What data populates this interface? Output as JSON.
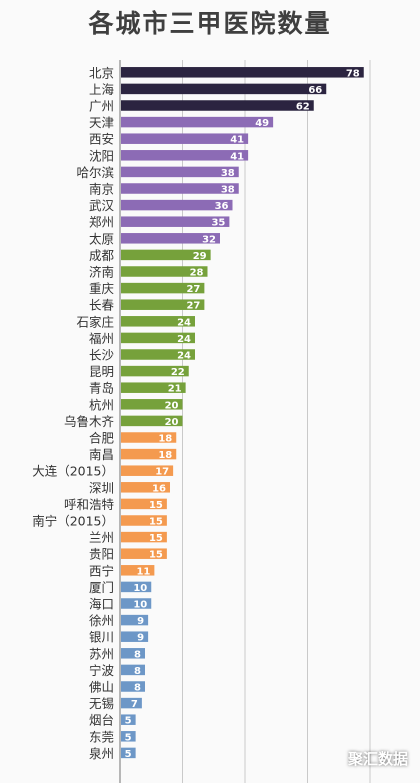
{
  "chart_data": {
    "type": "bar",
    "orientation": "horizontal",
    "title": "各城市三甲医院数量",
    "categories": [
      "北京",
      "上海",
      "广州",
      "天津",
      "西安",
      "沈阳",
      "哈尔滨",
      "南京",
      "武汉",
      "郑州",
      "太原",
      "成都",
      "济南",
      "重庆",
      "长春",
      "石家庄",
      "福州",
      "长沙",
      "昆明",
      "青岛",
      "杭州",
      "乌鲁木齐",
      "合肥",
      "南昌",
      "大连（2015）",
      "深圳",
      "呼和浩特",
      "南宁（2015）",
      "兰州",
      "贵阳",
      "西宁",
      "厦门",
      "海口",
      "徐州",
      "银川",
      "苏州",
      "宁波",
      "佛山",
      "无锡",
      "烟台",
      "东莞",
      "泉州"
    ],
    "values": [
      78,
      66,
      62,
      49,
      41,
      41,
      38,
      38,
      36,
      35,
      32,
      29,
      28,
      27,
      27,
      24,
      24,
      24,
      22,
      21,
      20,
      20,
      18,
      18,
      17,
      16,
      15,
      15,
      15,
      15,
      11,
      10,
      10,
      9,
      9,
      8,
      8,
      8,
      7,
      5,
      5,
      5
    ],
    "groups": [
      0,
      0,
      0,
      1,
      1,
      1,
      1,
      1,
      1,
      1,
      1,
      2,
      2,
      2,
      2,
      2,
      2,
      2,
      2,
      2,
      2,
      2,
      3,
      3,
      3,
      3,
      3,
      3,
      3,
      3,
      3,
      4,
      4,
      4,
      4,
      4,
      4,
      4,
      4,
      4,
      4,
      4
    ],
    "group_colors": [
      "#2b2440",
      "#8c6bb5",
      "#76a13b",
      "#f49a4f",
      "#6d97c7"
    ],
    "data_labels": true,
    "grid": true,
    "xlim": [
      0,
      80
    ]
  },
  "watermark": "聚汇数据"
}
